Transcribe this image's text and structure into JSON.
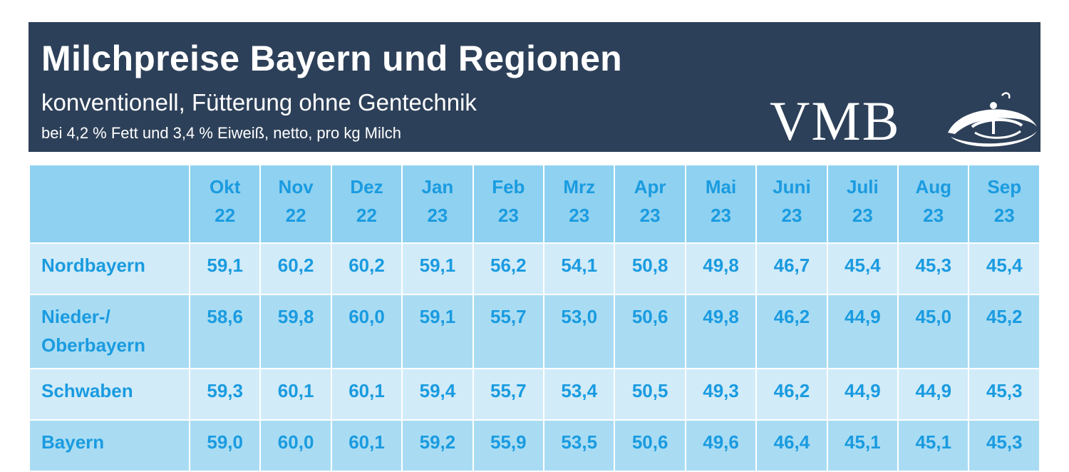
{
  "header": {
    "title": "Milchpreise Bayern und Regionen",
    "subtitle": "konventionell, Fütterung ohne Gentechnik",
    "note": "bei 4,2 % Fett und 3,4 % Eiweiß, netto, pro kg Milch",
    "logo_text": "VMB"
  },
  "colors": {
    "header_bg": "#2d4059",
    "header_row_bg": "#8fd1f0",
    "row_light": "#d1ebf8",
    "row_dark": "#a9dcf3",
    "value_text": "#1a9be0"
  },
  "chart_data": {
    "type": "table",
    "title": "Milchpreise Bayern und Regionen",
    "subtitle": "konventionell, Fütterung ohne Gentechnik",
    "columns": [
      {
        "month": "Okt",
        "year": "22"
      },
      {
        "month": "Nov",
        "year": "22"
      },
      {
        "month": "Dez",
        "year": "22"
      },
      {
        "month": "Jan",
        "year": "23"
      },
      {
        "month": "Feb",
        "year": "23"
      },
      {
        "month": "Mrz",
        "year": "23"
      },
      {
        "month": "Apr",
        "year": "23"
      },
      {
        "month": "Mai",
        "year": "23"
      },
      {
        "month": "Juni",
        "year": "23"
      },
      {
        "month": "Juli",
        "year": "23"
      },
      {
        "month": "Aug",
        "year": "23"
      },
      {
        "month": "Sep",
        "year": "23"
      }
    ],
    "rows": [
      {
        "region": "Nordbayern",
        "values": [
          "59,1",
          "60,2",
          "60,2",
          "59,1",
          "56,2",
          "54,1",
          "50,8",
          "49,8",
          "46,7",
          "45,4",
          "45,3",
          "45,4"
        ]
      },
      {
        "region": "Nieder-/ Oberbayern",
        "values": [
          "58,6",
          "59,8",
          "60,0",
          "59,1",
          "55,7",
          "53,0",
          "50,6",
          "49,8",
          "46,2",
          "44,9",
          "45,0",
          "45,2"
        ]
      },
      {
        "region": "Schwaben",
        "values": [
          "59,3",
          "60,1",
          "60,1",
          "59,4",
          "55,7",
          "53,4",
          "50,5",
          "49,3",
          "46,2",
          "44,9",
          "44,9",
          "45,3"
        ]
      },
      {
        "region": "Bayern",
        "values": [
          "59,0",
          "60,0",
          "60,1",
          "59,2",
          "55,9",
          "53,5",
          "50,6",
          "49,6",
          "46,4",
          "45,1",
          "45,1",
          "45,3"
        ]
      }
    ]
  }
}
